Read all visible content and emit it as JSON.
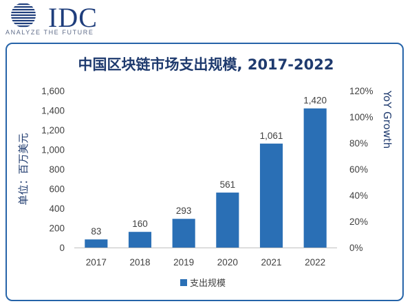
{
  "logo": {
    "brand": "IDC",
    "tagline": "ANALYZE THE FUTURE"
  },
  "colors": {
    "bar": "#2a6fb5",
    "frame": "#2563a8",
    "title": "#1e3a6e",
    "brand": "#1f3e7c"
  },
  "chart_data": {
    "type": "bar",
    "title": "中国区块链市场支出规模, 2017-2022",
    "ylabel": "单位：百万美元",
    "y2label": "YoY Growth",
    "categories": [
      "2017",
      "2018",
      "2019",
      "2020",
      "2021",
      "2022"
    ],
    "series": [
      {
        "name": "支出规模",
        "values": [
          83,
          160,
          293,
          561,
          1061,
          1420
        ]
      }
    ],
    "data_labels": [
      "83",
      "160",
      "293",
      "561",
      "1,061",
      "1,420"
    ],
    "ylim": [
      0,
      1600
    ],
    "yticks": [
      "0",
      "200",
      "400",
      "600",
      "800",
      "1,000",
      "1,200",
      "1,400",
      "1,600"
    ],
    "y2lim": [
      0,
      120
    ],
    "y2ticks": [
      "0%",
      "20%",
      "40%",
      "60%",
      "80%",
      "100%",
      "120%"
    ],
    "grid": false,
    "legend": "bottom"
  }
}
